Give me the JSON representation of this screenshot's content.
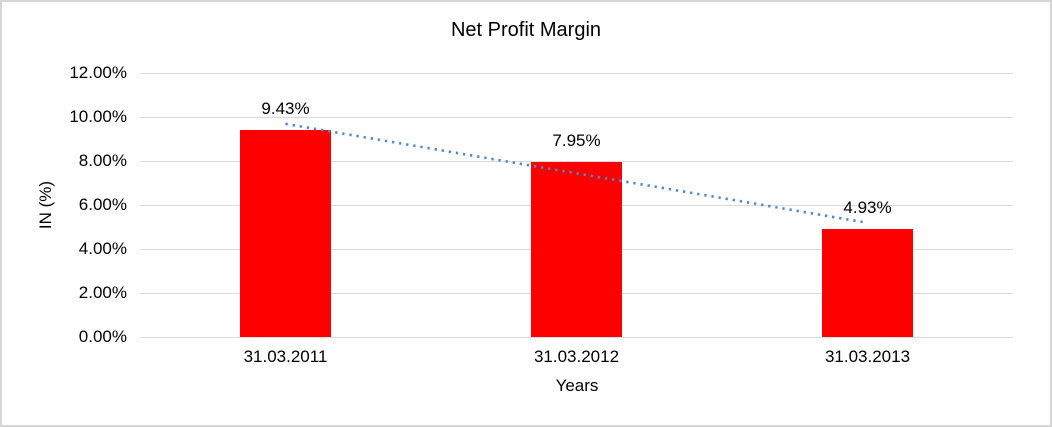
{
  "window": {
    "background": "#FFFFFF",
    "border_color": "#D6D6D6"
  },
  "chart_data": {
    "type": "bar",
    "title": "Net Profit Margin",
    "xlabel": "Years",
    "ylabel": "IN (%)",
    "categories": [
      "31.03.2011",
      "31.03.2012",
      "31.03.2013"
    ],
    "values": [
      9.43,
      7.95,
      4.93
    ],
    "data_labels": [
      "9.43%",
      "7.95%",
      "4.93%"
    ],
    "ylim": [
      0,
      12
    ],
    "y_ticks": [
      {
        "value": 12,
        "label": "12.00%"
      },
      {
        "value": 10,
        "label": "10.00%"
      },
      {
        "value": 8,
        "label": "8.00%"
      },
      {
        "value": 6,
        "label": "6.00%"
      },
      {
        "value": 4,
        "label": "4.00%"
      },
      {
        "value": 2,
        "label": "2.00%"
      },
      {
        "value": 0,
        "label": "0.00%"
      }
    ],
    "grid": true,
    "legend": false,
    "bar_color": "#FF0000",
    "gridline_color": "#D9D9D9",
    "text_color": "#000000",
    "trendline": {
      "type": "linear",
      "style": "dotted",
      "color": "#4F87C7",
      "start_value": 9.69,
      "end_value": 5.19
    }
  }
}
